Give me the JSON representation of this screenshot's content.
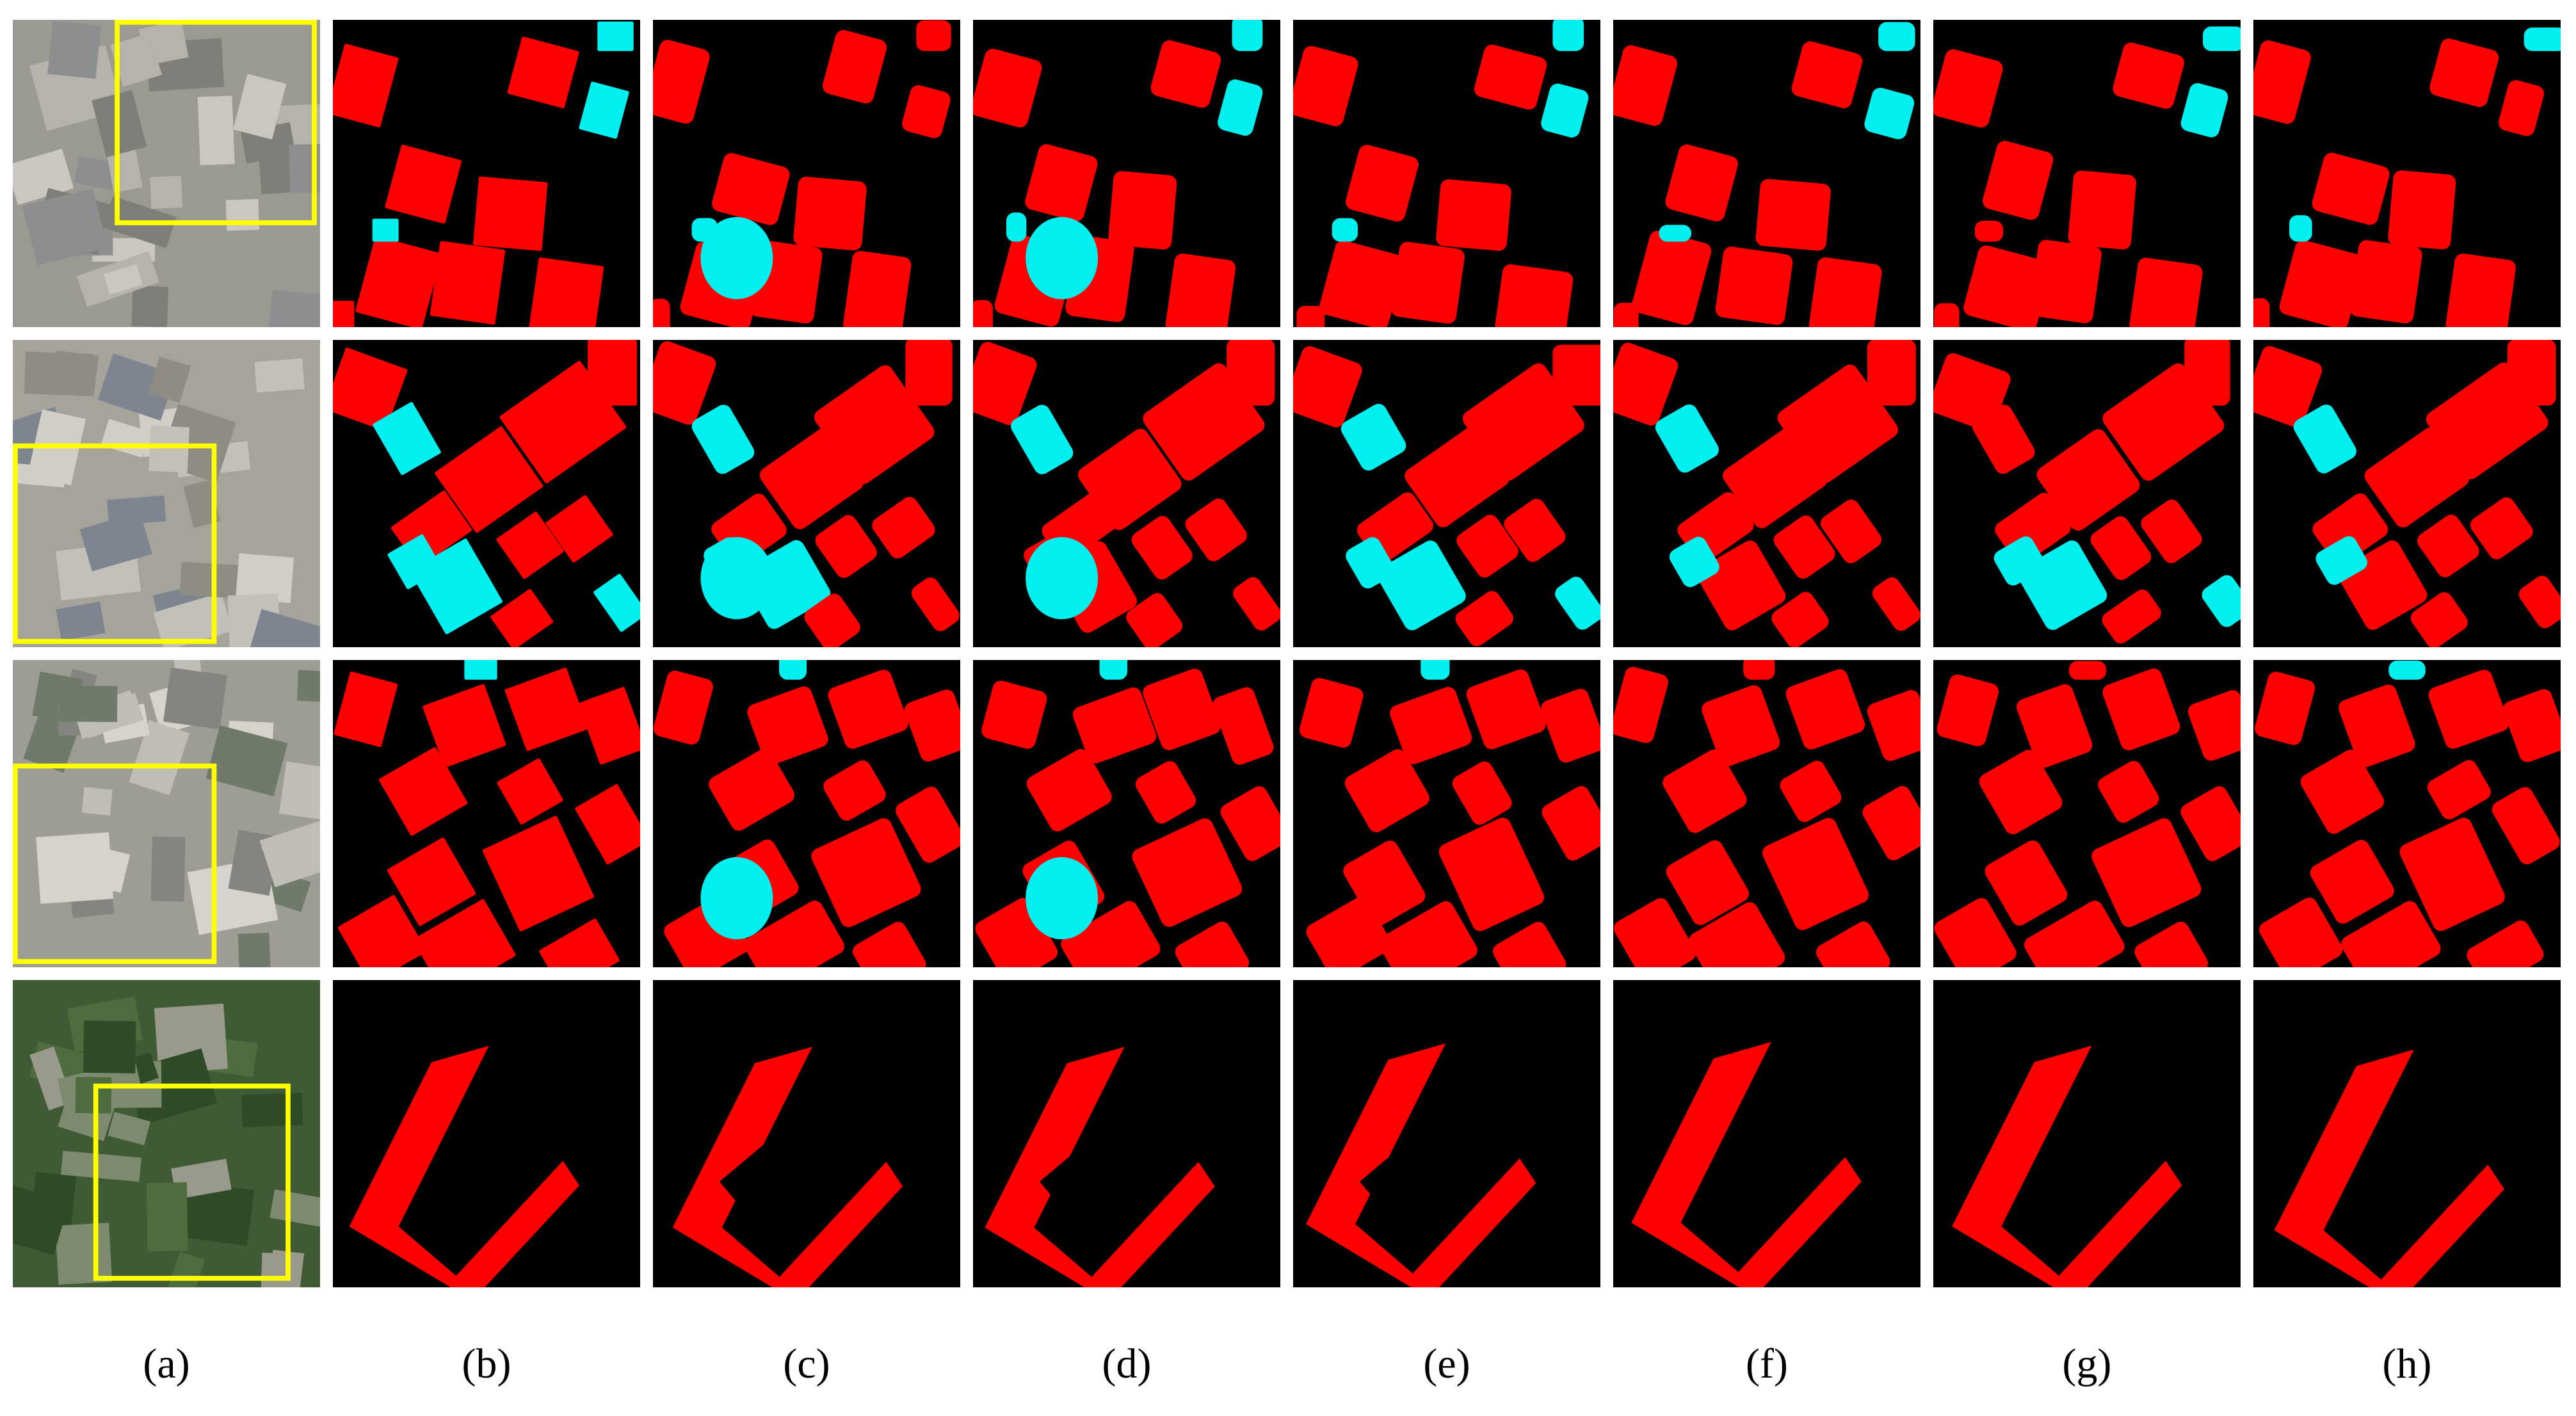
{
  "panel_labels": [
    "(a)",
    "(b)",
    "(c)",
    "(d)",
    "(e)",
    "(f)",
    "(g)",
    "(h)"
  ]
}
